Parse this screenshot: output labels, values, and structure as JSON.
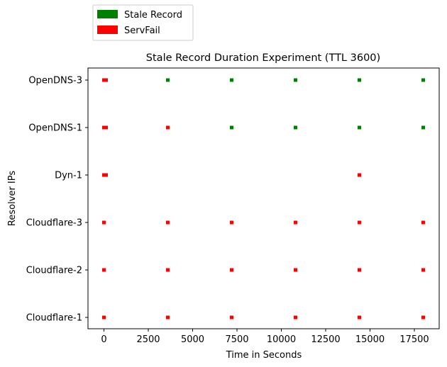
{
  "chart_data": {
    "type": "scatter",
    "title": "Stale Record Duration Experiment (TTL 3600)",
    "xlabel": "Time in Seconds",
    "ylabel": "Resolver IPs",
    "categories": [
      "Cloudflare-1",
      "Cloudflare-2",
      "Cloudflare-3",
      "Dyn-1",
      "OpenDNS-1",
      "OpenDNS-3"
    ],
    "xlim": [
      -900,
      18900
    ],
    "xticks": [
      0,
      2500,
      5000,
      7500,
      10000,
      12500,
      15000,
      17500
    ],
    "xtick_labels": [
      "0",
      "2500",
      "5000",
      "7500",
      "10000",
      "12500",
      "15000",
      "17500"
    ],
    "legend_position": "top-left, above plot",
    "grid": false,
    "series": [
      {
        "name": "Stale Record",
        "color": "#008000",
        "points": [
          {
            "x": 3600,
            "y": "OpenDNS-3"
          },
          {
            "x": 7200,
            "y": "OpenDNS-3"
          },
          {
            "x": 10800,
            "y": "OpenDNS-3"
          },
          {
            "x": 14400,
            "y": "OpenDNS-3"
          },
          {
            "x": 18000,
            "y": "OpenDNS-3"
          },
          {
            "x": 7200,
            "y": "OpenDNS-1"
          },
          {
            "x": 10800,
            "y": "OpenDNS-1"
          },
          {
            "x": 14400,
            "y": "OpenDNS-1"
          },
          {
            "x": 18000,
            "y": "OpenDNS-1"
          }
        ]
      },
      {
        "name": "ServFail",
        "color": "#ff0000",
        "points": [
          {
            "x": 0,
            "y": "OpenDNS-3"
          },
          {
            "x": 60,
            "y": "OpenDNS-3"
          },
          {
            "x": 120,
            "y": "OpenDNS-3"
          },
          {
            "x": 0,
            "y": "OpenDNS-1"
          },
          {
            "x": 60,
            "y": "OpenDNS-1"
          },
          {
            "x": 120,
            "y": "OpenDNS-1"
          },
          {
            "x": 3600,
            "y": "OpenDNS-1"
          },
          {
            "x": 0,
            "y": "Dyn-1"
          },
          {
            "x": 60,
            "y": "Dyn-1"
          },
          {
            "x": 120,
            "y": "Dyn-1"
          },
          {
            "x": 14400,
            "y": "Dyn-1"
          },
          {
            "x": 0,
            "y": "Cloudflare-3"
          },
          {
            "x": 3600,
            "y": "Cloudflare-3"
          },
          {
            "x": 7200,
            "y": "Cloudflare-3"
          },
          {
            "x": 10800,
            "y": "Cloudflare-3"
          },
          {
            "x": 14400,
            "y": "Cloudflare-3"
          },
          {
            "x": 18000,
            "y": "Cloudflare-3"
          },
          {
            "x": 0,
            "y": "Cloudflare-2"
          },
          {
            "x": 3600,
            "y": "Cloudflare-2"
          },
          {
            "x": 7200,
            "y": "Cloudflare-2"
          },
          {
            "x": 10800,
            "y": "Cloudflare-2"
          },
          {
            "x": 14400,
            "y": "Cloudflare-2"
          },
          {
            "x": 18000,
            "y": "Cloudflare-2"
          },
          {
            "x": 0,
            "y": "Cloudflare-1"
          },
          {
            "x": 3600,
            "y": "Cloudflare-1"
          },
          {
            "x": 7200,
            "y": "Cloudflare-1"
          },
          {
            "x": 10800,
            "y": "Cloudflare-1"
          },
          {
            "x": 14400,
            "y": "Cloudflare-1"
          },
          {
            "x": 18000,
            "y": "Cloudflare-1"
          }
        ]
      }
    ]
  }
}
